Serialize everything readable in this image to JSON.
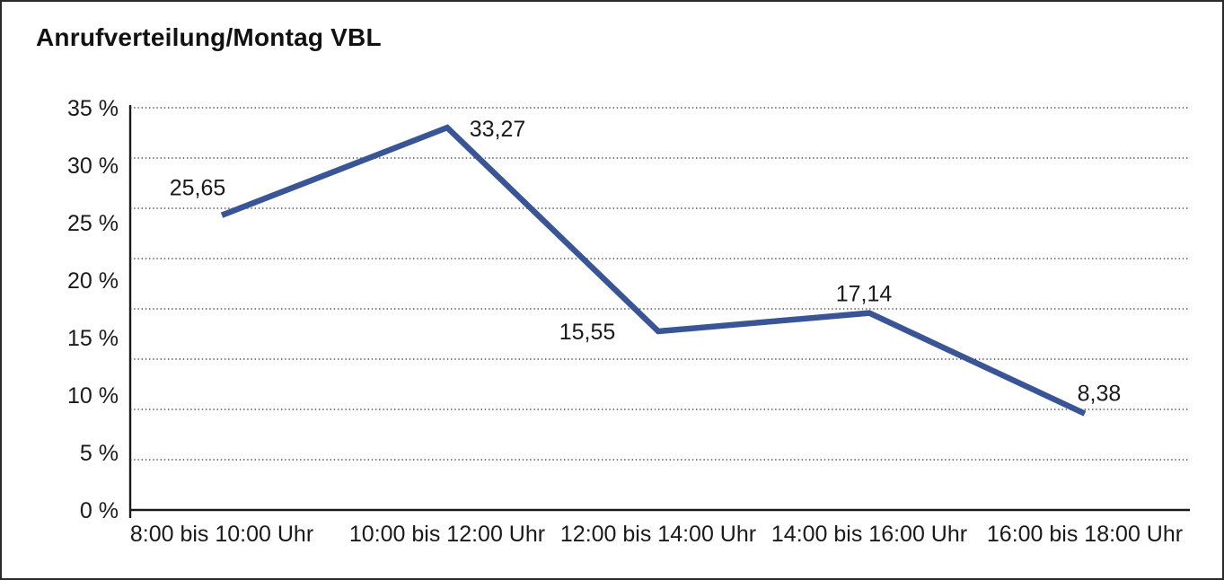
{
  "header": {
    "title": "Anrufverteilung/Montag VBL"
  },
  "chart_data": {
    "type": "line",
    "title": "Anrufverteilung/Montag VBL",
    "categories": [
      "8:00 bis 10:00 Uhr",
      "10:00 bis 12:00 Uhr",
      "12:00 bis 14:00 Uhr",
      "14:00 bis 16:00 Uhr",
      "16:00 bis 18:00 Uhr"
    ],
    "values": [
      25.65,
      33.27,
      15.55,
      17.14,
      8.38
    ],
    "value_labels": [
      "25,65",
      "33,27",
      "15,55",
      "17,14",
      "8,38"
    ],
    "xlabel": "",
    "ylabel": "",
    "ylim": [
      0,
      35
    ],
    "ytick_labels": [
      "35 %",
      "30 %",
      "25 %",
      "20 %",
      "15 %",
      "10 %",
      "5 %",
      "0 %"
    ],
    "grid": "horizontal-dotted",
    "legend": "none",
    "colors": {
      "line": "#3A5596",
      "text": "#1a1a1a",
      "grid": "#555555",
      "axis": "#1a1a1a",
      "background": "#ffffff",
      "border": "#2a2a2a"
    }
  }
}
